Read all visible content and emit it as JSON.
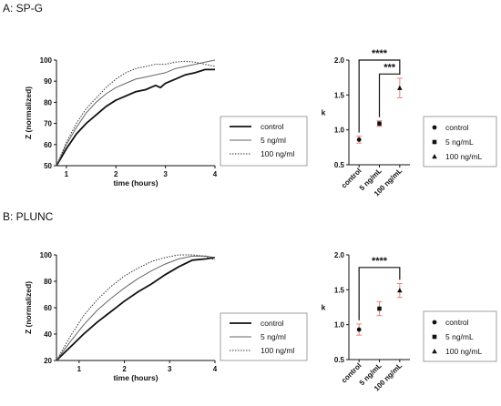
{
  "panels": [
    {
      "title": "A: SP-G",
      "line_chart": {
        "type": "line",
        "xlabel": "time (hours)",
        "ylabel": "Z (normalized)",
        "xlim": [
          0.8,
          4
        ],
        "ylim": [
          50,
          100
        ],
        "xticks": [
          1,
          2,
          3,
          4
        ],
        "yticks": [
          50,
          60,
          70,
          80,
          90,
          100
        ],
        "legend": "right",
        "series": [
          {
            "name": "control",
            "style": "solid-thick",
            "x": [
              0.8,
              1.0,
              1.2,
              1.4,
              1.6,
              1.8,
              2.0,
              2.2,
              2.4,
              2.6,
              2.8,
              2.9,
              3.0,
              3.2,
              3.4,
              3.6,
              3.8,
              4.0
            ],
            "y": [
              50,
              58,
              65,
              70,
              74,
              78,
              81,
              83,
              85,
              86,
              88,
              87,
              89,
              91,
              93,
              94,
              95.5,
              95.5
            ]
          },
          {
            "name": "5 ng/ml",
            "style": "solid-thin",
            "x": [
              0.8,
              1.0,
              1.2,
              1.4,
              1.6,
              1.8,
              2.0,
              2.2,
              2.4,
              2.6,
              2.8,
              3.0,
              3.2,
              3.4,
              3.6,
              3.8,
              4.0
            ],
            "y": [
              50,
              60,
              68,
              75,
              80,
              84,
              87,
              89,
              91,
              92,
              93,
              94,
              96,
              97,
              98,
              99,
              100
            ]
          },
          {
            "name": "100 ng/ml",
            "style": "dotted",
            "x": [
              0.8,
              1.0,
              1.2,
              1.4,
              1.6,
              1.8,
              2.0,
              2.2,
              2.4,
              2.6,
              2.8,
              3.0,
              3.2,
              3.4,
              3.6,
              3.8,
              4.0
            ],
            "y": [
              50,
              61,
              70,
              77,
              82,
              87,
              91,
              94,
              96,
              97,
              98,
              98,
              99,
              99.5,
              99,
              98,
              97
            ]
          }
        ]
      },
      "dot_chart": {
        "type": "scatter",
        "ylabel": "k",
        "ylim": [
          0.5,
          2.0
        ],
        "yticks": [
          "0.5",
          "1.0",
          "1.5",
          "2.0"
        ],
        "categories": [
          "control",
          "5 ng/mL",
          "100 ng/mL"
        ],
        "values": [
          0.86,
          1.09,
          1.6
        ],
        "errors": [
          0.05,
          0.04,
          0.14
        ],
        "legend": "right",
        "legend_items": [
          "control",
          "5 ng/mL",
          "100 ng/mL"
        ],
        "significance": [
          {
            "label": "****",
            "from": 0,
            "to": 2,
            "level": 2.0
          },
          {
            "label": "***",
            "from": 1,
            "to": 2,
            "level": 1.8
          }
        ]
      }
    },
    {
      "title": "B: PLUNC",
      "line_chart": {
        "type": "line",
        "xlabel": "time (hours)",
        "ylabel": "Z (normalized)",
        "xlim": [
          0.5,
          4
        ],
        "ylim": [
          20,
          100
        ],
        "xticks": [
          1,
          2,
          3,
          4
        ],
        "yticks": [
          20,
          40,
          60,
          80,
          100
        ],
        "legend": "right",
        "series": [
          {
            "name": "control",
            "style": "solid-thick",
            "x": [
              0.5,
              0.8,
              1.1,
              1.4,
              1.7,
              2.0,
              2.3,
              2.6,
              2.9,
              3.2,
              3.5,
              3.8,
              4.0
            ],
            "y": [
              20,
              30,
              40,
              49,
              57,
              65,
              72,
              78,
              85,
              91,
              96,
              97,
              98
            ]
          },
          {
            "name": "5 ng/ml",
            "style": "solid-thin",
            "x": [
              0.5,
              0.8,
              1.1,
              1.4,
              1.7,
              2.0,
              2.3,
              2.6,
              2.9,
              3.2,
              3.5,
              3.8,
              4.0
            ],
            "y": [
              20,
              34,
              47,
              58,
              67,
              75,
              82,
              88,
              93,
              97,
              99,
              99,
              98
            ]
          },
          {
            "name": "100 ng/ml",
            "style": "dotted",
            "x": [
              0.5,
              0.8,
              1.1,
              1.4,
              1.7,
              2.0,
              2.3,
              2.6,
              2.9,
              3.2,
              3.5,
              3.8,
              4.0
            ],
            "y": [
              20,
              38,
              54,
              66,
              76,
              84,
              90,
              95,
              98,
              100,
              100,
              99,
              96
            ]
          }
        ]
      },
      "dot_chart": {
        "type": "scatter",
        "ylabel": "k",
        "ylim": [
          0.5,
          2.0
        ],
        "yticks": [
          "0.5",
          "1.0",
          "1.5",
          "2.0"
        ],
        "categories": [
          "control",
          "5 ng/mL",
          "100 ng/mL"
        ],
        "values": [
          0.93,
          1.23,
          1.49
        ],
        "errors": [
          0.08,
          0.1,
          0.1
        ],
        "legend": "right",
        "legend_items": [
          "control",
          "5 ng/mL",
          "100 ng/mL"
        ],
        "significance": [
          {
            "label": "****",
            "from": 0,
            "to": 2,
            "level": 1.82
          }
        ]
      }
    }
  ],
  "colors": {
    "line": "#111111",
    "error_bar": "#e8827a",
    "marker": "#111111"
  }
}
